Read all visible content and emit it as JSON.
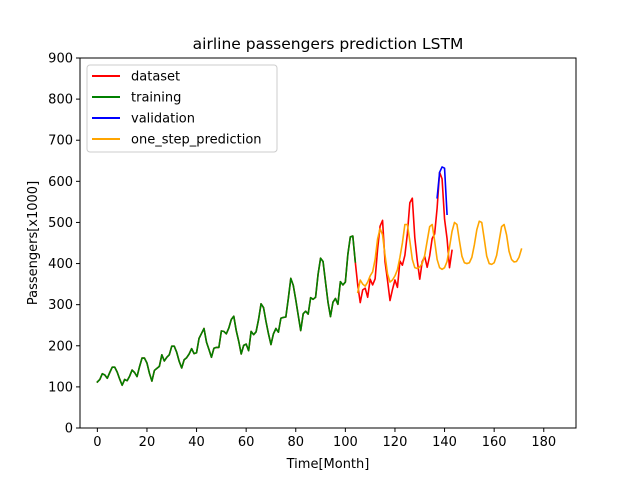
{
  "chart_data": {
    "type": "line",
    "title": "airline passengers prediction LSTM",
    "xlabel": "Time[Month]",
    "ylabel": "Passengers[x1000]",
    "xlim": [
      -7,
      193
    ],
    "ylim": [
      0,
      900
    ],
    "xticks": [
      "0",
      "20",
      "40",
      "60",
      "80",
      "100",
      "120",
      "140",
      "160",
      "180"
    ],
    "yticks": [
      "0",
      "100",
      "200",
      "300",
      "400",
      "500",
      "600",
      "700",
      "800",
      "900"
    ],
    "grid": false,
    "legend_position": "top-left",
    "series": [
      {
        "name": "dataset",
        "color": "#ff0000",
        "x_start": 0,
        "values": [
          112,
          118,
          132,
          129,
          121,
          135,
          148,
          148,
          136,
          119,
          104,
          118,
          115,
          126,
          141,
          135,
          125,
          149,
          170,
          170,
          158,
          133,
          114,
          140,
          145,
          150,
          178,
          163,
          172,
          178,
          199,
          199,
          184,
          162,
          146,
          166,
          171,
          180,
          193,
          181,
          183,
          218,
          230,
          242,
          209,
          191,
          172,
          194,
          196,
          196,
          236,
          235,
          229,
          243,
          264,
          272,
          237,
          211,
          180,
          201,
          204,
          188,
          235,
          227,
          234,
          264,
          302,
          293,
          259,
          229,
          203,
          229,
          242,
          233,
          267,
          269,
          270,
          315,
          364,
          347,
          312,
          274,
          237,
          278,
          284,
          277,
          317,
          313,
          318,
          374,
          413,
          405,
          355,
          306,
          271,
          306,
          315,
          301,
          356,
          348,
          355,
          422,
          465,
          467,
          404,
          347,
          305,
          336,
          340,
          318,
          362,
          348,
          363,
          435,
          491,
          505,
          404,
          359,
          310,
          337,
          360,
          342,
          406,
          396,
          420,
          472,
          548,
          559,
          463,
          407,
          362,
          405,
          417,
          391,
          419,
          461,
          472,
          535,
          622,
          606,
          508,
          461,
          390,
          432
        ]
      },
      {
        "name": "training",
        "color": "#008000",
        "x_start": 0,
        "values": [
          112,
          118,
          132,
          129,
          121,
          135,
          148,
          148,
          136,
          119,
          104,
          118,
          115,
          126,
          141,
          135,
          125,
          149,
          170,
          170,
          158,
          133,
          114,
          140,
          145,
          150,
          178,
          163,
          172,
          178,
          199,
          199,
          184,
          162,
          146,
          166,
          171,
          180,
          193,
          181,
          183,
          218,
          230,
          242,
          209,
          191,
          172,
          194,
          196,
          196,
          236,
          235,
          229,
          243,
          264,
          272,
          237,
          211,
          180,
          201,
          204,
          188,
          235,
          227,
          234,
          264,
          302,
          293,
          259,
          229,
          203,
          229,
          242,
          233,
          267,
          269,
          270,
          315,
          364,
          347,
          312,
          274,
          237,
          278,
          284,
          277,
          317,
          313,
          318,
          374,
          413,
          405,
          355,
          306,
          271,
          306,
          315,
          301,
          356,
          348,
          355,
          422,
          465,
          467,
          404
        ]
      },
      {
        "name": "validation",
        "color": "#0000ff",
        "x_start": 137,
        "values": [
          560,
          622,
          635,
          632,
          520
        ]
      },
      {
        "name": "one_step_prediction",
        "color": "#ffa500",
        "x_start": 105,
        "values": [
          330,
          360,
          350,
          345,
          355,
          370,
          380,
          410,
          460,
          485,
          470,
          420,
          375,
          355,
          360,
          370,
          385,
          415,
          450,
          495,
          495,
          455,
          410,
          390,
          388,
          392,
          400,
          420,
          455,
          490,
          495,
          455,
          410,
          390,
          386,
          390,
          405,
          440,
          478,
          500,
          495,
          455,
          418,
          402,
          400,
          402,
          415,
          445,
          482,
          503,
          500,
          460,
          418,
          400,
          398,
          402,
          420,
          455,
          490,
          495,
          470,
          430,
          410,
          404,
          405,
          415,
          435
        ]
      }
    ]
  }
}
